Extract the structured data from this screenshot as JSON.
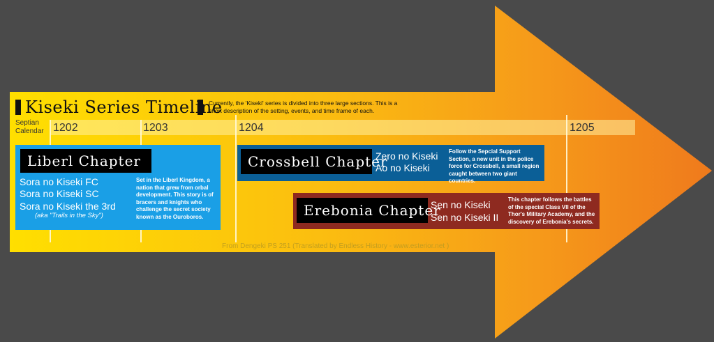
{
  "header": {
    "title": "Kiseki Series Timeline",
    "intro": "Currently, the 'Kiseki' series is divided into three large sections. This is a short description of the setting, events, and time frame of each."
  },
  "calendar": {
    "line1": "Septian",
    "line2": "Calendar"
  },
  "years": [
    "1202",
    "1203",
    "1204",
    "1205"
  ],
  "chapters": {
    "liberl": {
      "title": "Liberl Chapter",
      "games": [
        "Sora no Kiseki FC",
        "Sora no Kiseki SC",
        "Sora no Kiseki the 3rd"
      ],
      "aka": "(aka \"Trails in the Sky\")",
      "description": "Set in the Liberl Kingdom, a nation that grew from orbal development. This story is of bracers and knights who challenge the secret society known as the Ouroboros.",
      "color": "#1a9fe6"
    },
    "crossbell": {
      "title": "Crossbell Chapter",
      "games": [
        "Zero no Kiseki",
        "Ao no Kiseki"
      ],
      "description": "Follow the Sepcial Support Section, a new unit in the police force for Crossbell, a small region caught between two giant countries.",
      "color": "#0b5f97"
    },
    "erebonia": {
      "title": "Erebonia Chapter",
      "games": [
        "Sen no Kiseki",
        "Sen no Kiseki II"
      ],
      "description": "This chapter follows the battles of the special Class VII of the Thor's Military Academy, and the discovery of Erebonia's secrets.",
      "color": "#8e2a20"
    }
  },
  "credit": "From Dengeki PS 251 (Translated by Endless History - www.esterior.net )",
  "colors": {
    "background": "#4a4a4a",
    "arrow_start": "#ffd600",
    "arrow_end": "#f07a1a"
  }
}
